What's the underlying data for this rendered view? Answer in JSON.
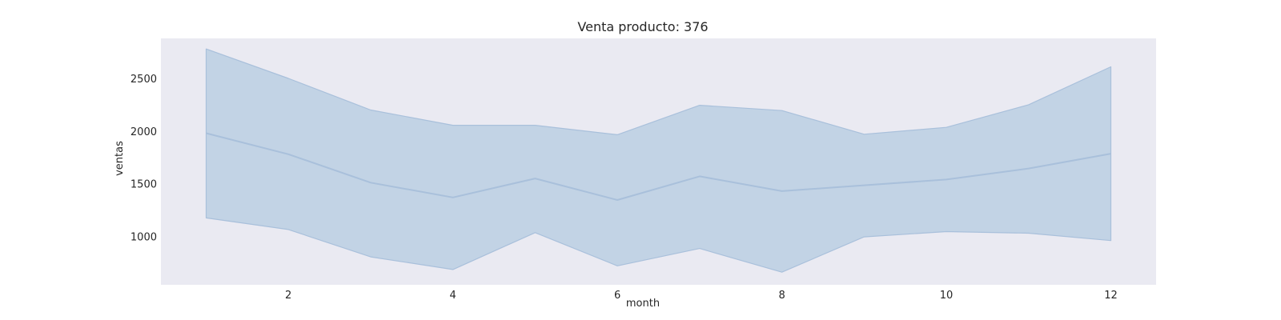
{
  "chart_data": {
    "type": "area",
    "title": "Venta producto: 376",
    "xlabel": "month",
    "ylabel": "ventas",
    "xlim": [
      0.45,
      12.55
    ],
    "ylim": [
      540,
      2880
    ],
    "xticks": [
      2,
      4,
      6,
      8,
      10,
      12
    ],
    "yticks": [
      1000,
      1500,
      2000,
      2500
    ],
    "grid": false,
    "series": [
      {
        "x": [
          1,
          2,
          3,
          4,
          5,
          6,
          7,
          8,
          9,
          10,
          11,
          12
        ],
        "values": [
          1980,
          1780,
          1510,
          1370,
          1550,
          1345,
          1570,
          1430,
          1485,
          1540,
          1645,
          1785
        ],
        "lower": [
          1175,
          1065,
          805,
          685,
          1035,
          720,
          885,
          660,
          995,
          1045,
          1030,
          960
        ],
        "upper": [
          2780,
          2500,
          2200,
          2055,
          2055,
          1965,
          2245,
          2195,
          1970,
          2035,
          2250,
          2610
        ]
      }
    ],
    "colors": {
      "plot_background": "#eaeaf2",
      "line": "#a9c0db",
      "band_fill": "#c2d3e5",
      "band_edge": "#a9c0db"
    }
  }
}
